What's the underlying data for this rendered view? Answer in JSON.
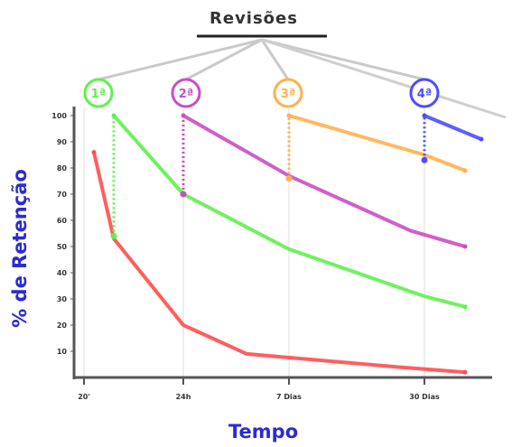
{
  "colors": {
    "red": "#ff4d4d",
    "green": "#5ff04d",
    "magenta": "#c94fc0",
    "orange": "#ffb04d",
    "blue": "#4d4dff",
    "axis": "#555555",
    "label": "#2b2bd0"
  },
  "chart_data": {
    "type": "line",
    "title": "Revisões",
    "xlabel": "Tempo",
    "ylabel": "% de Retenção",
    "ylim": [
      0,
      100
    ],
    "y_ticks": [
      "10",
      "20",
      "30",
      "40",
      "50",
      "60",
      "70",
      "80",
      "90",
      "100"
    ],
    "x_ticks": [
      "20'",
      "24h",
      "7 Dias",
      "30 Dias"
    ],
    "reviews": [
      "1ª",
      "2ª",
      "3ª",
      "4ª"
    ],
    "series": [
      {
        "color_key": "red",
        "points": [
          [
            0.1,
            86
          ],
          [
            0.3,
            53
          ],
          [
            1,
            20
          ],
          [
            1.6,
            9
          ],
          [
            2.8,
            4
          ],
          [
            3.5,
            2
          ]
        ]
      },
      {
        "color_key": "green",
        "points": [
          [
            0.3,
            54
          ],
          [
            0.3,
            100
          ],
          [
            1,
            70
          ],
          [
            2,
            49
          ],
          [
            3,
            31
          ],
          [
            3.5,
            27
          ]
        ]
      },
      {
        "color_key": "magenta",
        "points": [
          [
            1,
            70
          ],
          [
            1,
            100
          ],
          [
            2,
            77
          ],
          [
            2.9,
            56
          ],
          [
            3.5,
            50
          ]
        ]
      },
      {
        "color_key": "orange",
        "points": [
          [
            2,
            76
          ],
          [
            2,
            100
          ],
          [
            3,
            85
          ],
          [
            3.5,
            79
          ]
        ]
      },
      {
        "color_key": "blue",
        "points": [
          [
            3,
            83
          ],
          [
            3,
            100
          ],
          [
            3.7,
            91
          ]
        ]
      }
    ]
  }
}
